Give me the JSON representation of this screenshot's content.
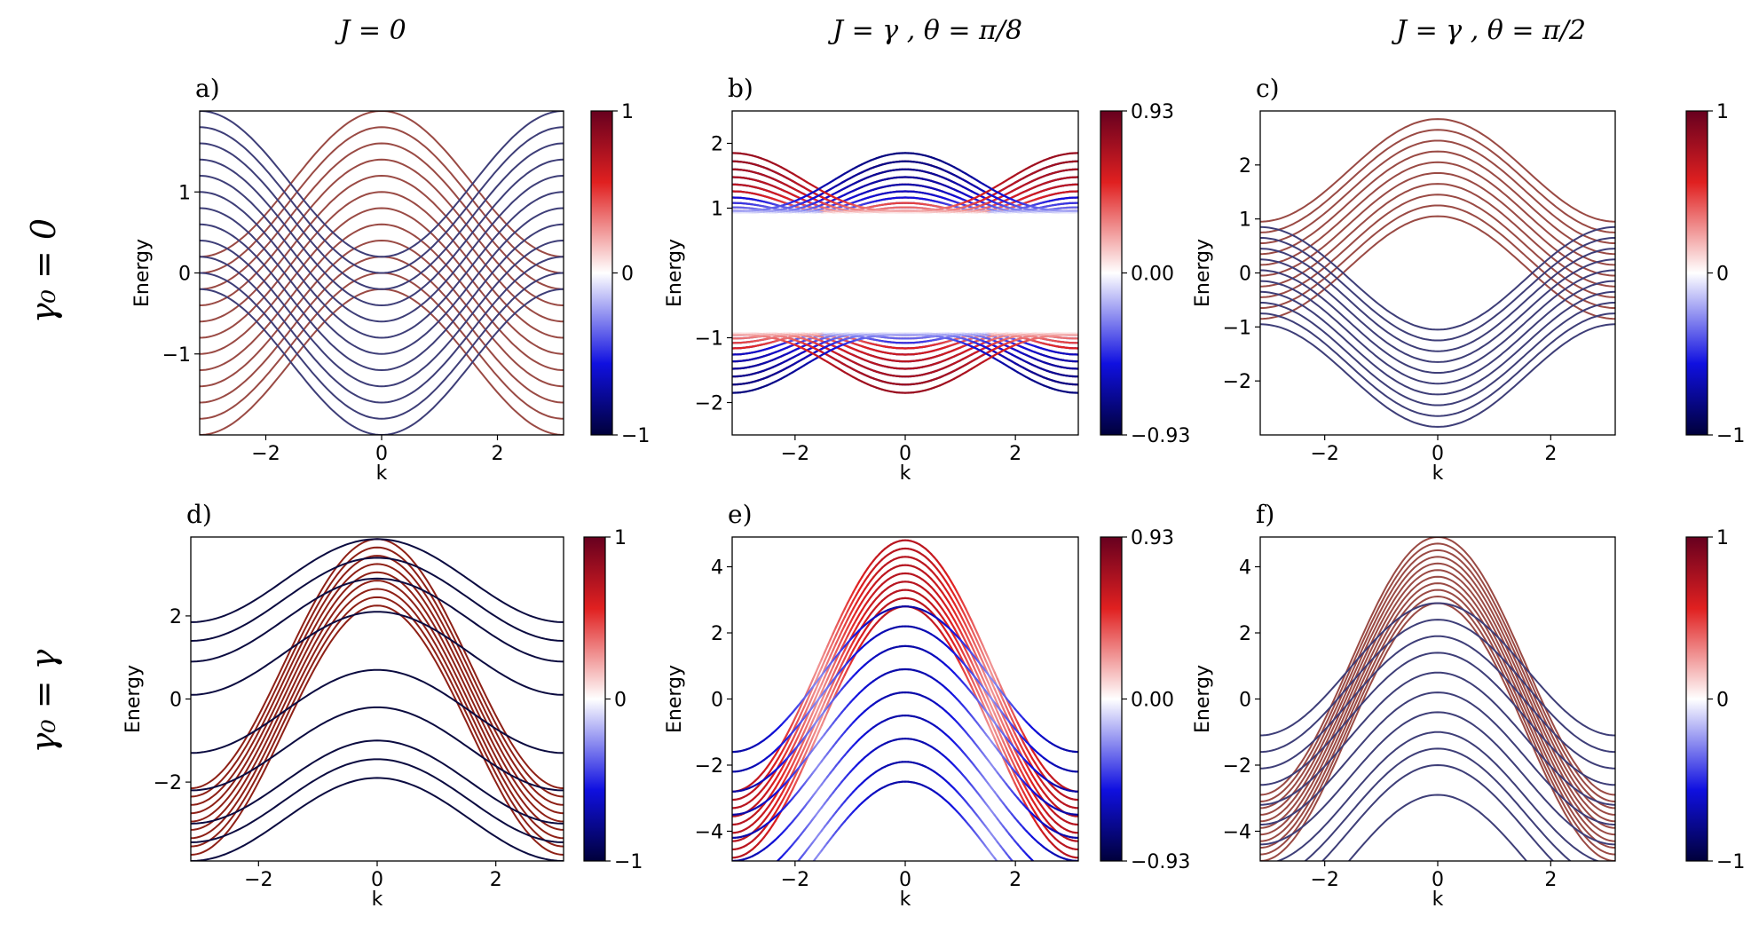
{
  "figure": {
    "column_titles": [
      "J = 0",
      "J = γ , θ = π/8",
      "J = γ , θ = π/2"
    ],
    "row_titles": [
      "γ₀ = 0",
      "γ₀ = γ"
    ],
    "colors": {
      "red_end": "#67001f",
      "red_mid": "#e02020",
      "white": "#ffffff",
      "blue_mid": "#1010e0",
      "blue_end": "#00003a",
      "axis": "#000000"
    }
  },
  "chart_data": [
    {
      "panel": "a)",
      "type": "line",
      "title": "",
      "xlabel": "k",
      "ylabel": "Energy",
      "xlim": [
        -3.1416,
        3.1416
      ],
      "ylim": [
        -2,
        2
      ],
      "xticks": [
        "−2",
        "0",
        "2"
      ],
      "xtick_values": [
        -2,
        0,
        2
      ],
      "yticks": [
        "−1",
        "0",
        "1"
      ],
      "ytick_values": [
        -1,
        0,
        1
      ],
      "colorbar": {
        "ticks": [
          "1",
          "0",
          "−1"
        ],
        "min": -1,
        "max": 1
      },
      "series": [
        {
          "name": "upper band family (red, +1)",
          "form": "c + a·cos(k)",
          "a": 0.9,
          "c_values": [
            1.1,
            0.9,
            0.7,
            0.5,
            0.3,
            0.1,
            -0.1,
            -0.3,
            -0.5,
            -0.7,
            -0.9,
            -1.1
          ],
          "color_value": 0.7
        },
        {
          "name": "lower band family (blue, −1)",
          "form": "c − a·cos(k)",
          "a": 0.9,
          "c_values": [
            1.1,
            0.9,
            0.7,
            0.5,
            0.3,
            0.1,
            -0.1,
            -0.3,
            -0.5,
            -0.7,
            -0.9,
            -1.1
          ],
          "color_value": -0.7
        }
      ]
    },
    {
      "panel": "b)",
      "type": "line",
      "title": "",
      "xlabel": "k",
      "ylabel": "Energy",
      "xlim": [
        -3.1416,
        3.1416
      ],
      "ylim": [
        -2.5,
        2.5
      ],
      "xticks": [
        "−2",
        "0",
        "2"
      ],
      "xtick_values": [
        -2,
        0,
        2
      ],
      "yticks": [
        "−2",
        "−1",
        "1",
        "2"
      ],
      "ytick_values": [
        -2,
        -1,
        1,
        2
      ],
      "colorbar": {
        "ticks": [
          "0.93",
          "0.00",
          "−0.93"
        ],
        "min": -0.93,
        "max": 0.93
      },
      "series": [
        {
          "name": "gapped bands, θ = π/8",
          "form": "±sqrt((c ± a·cos k)² + 0.93²), colored by mixing",
          "a": 0.7,
          "gap": 0.93
        }
      ]
    },
    {
      "panel": "c)",
      "type": "line",
      "title": "",
      "xlabel": "k",
      "ylabel": "Energy",
      "xlim": [
        -3.1416,
        3.1416
      ],
      "ylim": [
        -3,
        3
      ],
      "xticks": [
        "−2",
        "0",
        "2"
      ],
      "xtick_values": [
        -2,
        0,
        2
      ],
      "yticks": [
        "−2",
        "−1",
        "0",
        "1",
        "2"
      ],
      "ytick_values": [
        -2,
        -1,
        0,
        1,
        2
      ],
      "colorbar": {
        "ticks": [
          "1",
          "0",
          "−1"
        ],
        "min": -1,
        "max": 1
      },
      "series": [
        {
          "name": "red family",
          "form": "c + 0.95·cos(k)",
          "c_values": [
            1.9,
            1.7,
            1.5,
            1.3,
            1.1,
            0.9,
            0.7,
            0.5,
            0.3,
            0.1
          ],
          "color_value": 0.7
        },
        {
          "name": "blue family",
          "form": "c − 0.95·cos(k)",
          "c_values": [
            -0.1,
            -0.3,
            -0.5,
            -0.7,
            -0.9,
            -1.1,
            -1.3,
            -1.5,
            -1.7,
            -1.9
          ],
          "color_value": -0.7
        }
      ]
    },
    {
      "panel": "d)",
      "type": "line",
      "title": "",
      "xlabel": "k",
      "ylabel": "Energy",
      "xlim": [
        -3.1416,
        3.1416
      ],
      "ylim": [
        -3.9,
        3.9
      ],
      "xticks": [
        "−2",
        "0",
        "2"
      ],
      "xtick_values": [
        -2,
        0,
        2
      ],
      "yticks": [
        "−2",
        "0",
        "2"
      ],
      "ytick_values": [
        -2,
        0,
        2
      ],
      "colorbar": {
        "ticks": [
          "1",
          "0",
          "−1"
        ],
        "min": -1,
        "max": 1
      },
      "series": [
        {
          "name": "red family",
          "form": "c + 3·cos(k)",
          "c_values": [
            0.85,
            0.65,
            0.45,
            0.25,
            0.05,
            -0.15,
            -0.35,
            -0.55,
            -0.75
          ],
          "color_value": 0.8
        },
        {
          "name": "blue family",
          "form": "c + 1·cos(k)",
          "c_values": [
            2.85,
            2.4,
            1.9,
            1.1,
            -0.3,
            -1.2,
            -2.0,
            -2.45,
            -2.9
          ],
          "color_value": -0.95
        }
      ]
    },
    {
      "panel": "e)",
      "type": "line",
      "title": "",
      "xlabel": "k",
      "ylabel": "Energy",
      "xlim": [
        -3.1416,
        3.1416
      ],
      "ylim": [
        -4.9,
        4.9
      ],
      "xticks": [
        "−2",
        "0",
        "2"
      ],
      "xtick_values": [
        -2,
        0,
        2
      ],
      "yticks": [
        "−4",
        "−2",
        "0",
        "2",
        "4"
      ],
      "ytick_values": [
        -4,
        -2,
        0,
        2,
        4
      ],
      "colorbar": {
        "ticks": [
          "0.93",
          "0.00",
          "−0.93"
        ],
        "min": -0.93,
        "max": 0.93
      },
      "series": [
        {
          "name": "red family",
          "form": "c + 3.8·cos(k)",
          "c_values": [
            1.0,
            0.75,
            0.5,
            0.25,
            0.0,
            -0.25,
            -0.5,
            -0.75,
            -1.0
          ],
          "color_value": 0.75
        },
        {
          "name": "blue family",
          "form": "c + 2.2·cos(k)",
          "c_values": [
            0.6,
            0.0,
            -0.6,
            -1.3,
            -2.0,
            -2.7,
            -3.4,
            -4.1,
            -4.7
          ],
          "color_value": -0.75
        }
      ]
    },
    {
      "panel": "f)",
      "type": "line",
      "title": "",
      "xlabel": "k",
      "ylabel": "Energy",
      "xlim": [
        -3.1416,
        3.1416
      ],
      "ylim": [
        -4.9,
        4.9
      ],
      "xticks": [
        "−2",
        "0",
        "2"
      ],
      "xtick_values": [
        -2,
        0,
        2
      ],
      "yticks": [
        "−4",
        "−2",
        "0",
        "2",
        "4"
      ],
      "ytick_values": [
        -4,
        -2,
        0,
        2,
        4
      ],
      "colorbar": {
        "ticks": [
          "1",
          "0",
          "−1"
        ],
        "min": -1,
        "max": 1
      },
      "series": [
        {
          "name": "red family",
          "form": "c + 3.9·cos(k)",
          "c_values": [
            1.0,
            0.8,
            0.6,
            0.4,
            0.2,
            0.0,
            -0.2,
            -0.4,
            -0.6,
            -0.8,
            -1.0
          ],
          "color_value": 0.7
        },
        {
          "name": "blue family",
          "form": "c + 2·cos(k)",
          "c_values": [
            0.9,
            0.4,
            -0.1,
            -0.6,
            -1.2,
            -1.8,
            -2.4,
            -3.0,
            -3.5,
            -4.0,
            -4.9
          ],
          "color_value": -0.7
        }
      ]
    }
  ]
}
